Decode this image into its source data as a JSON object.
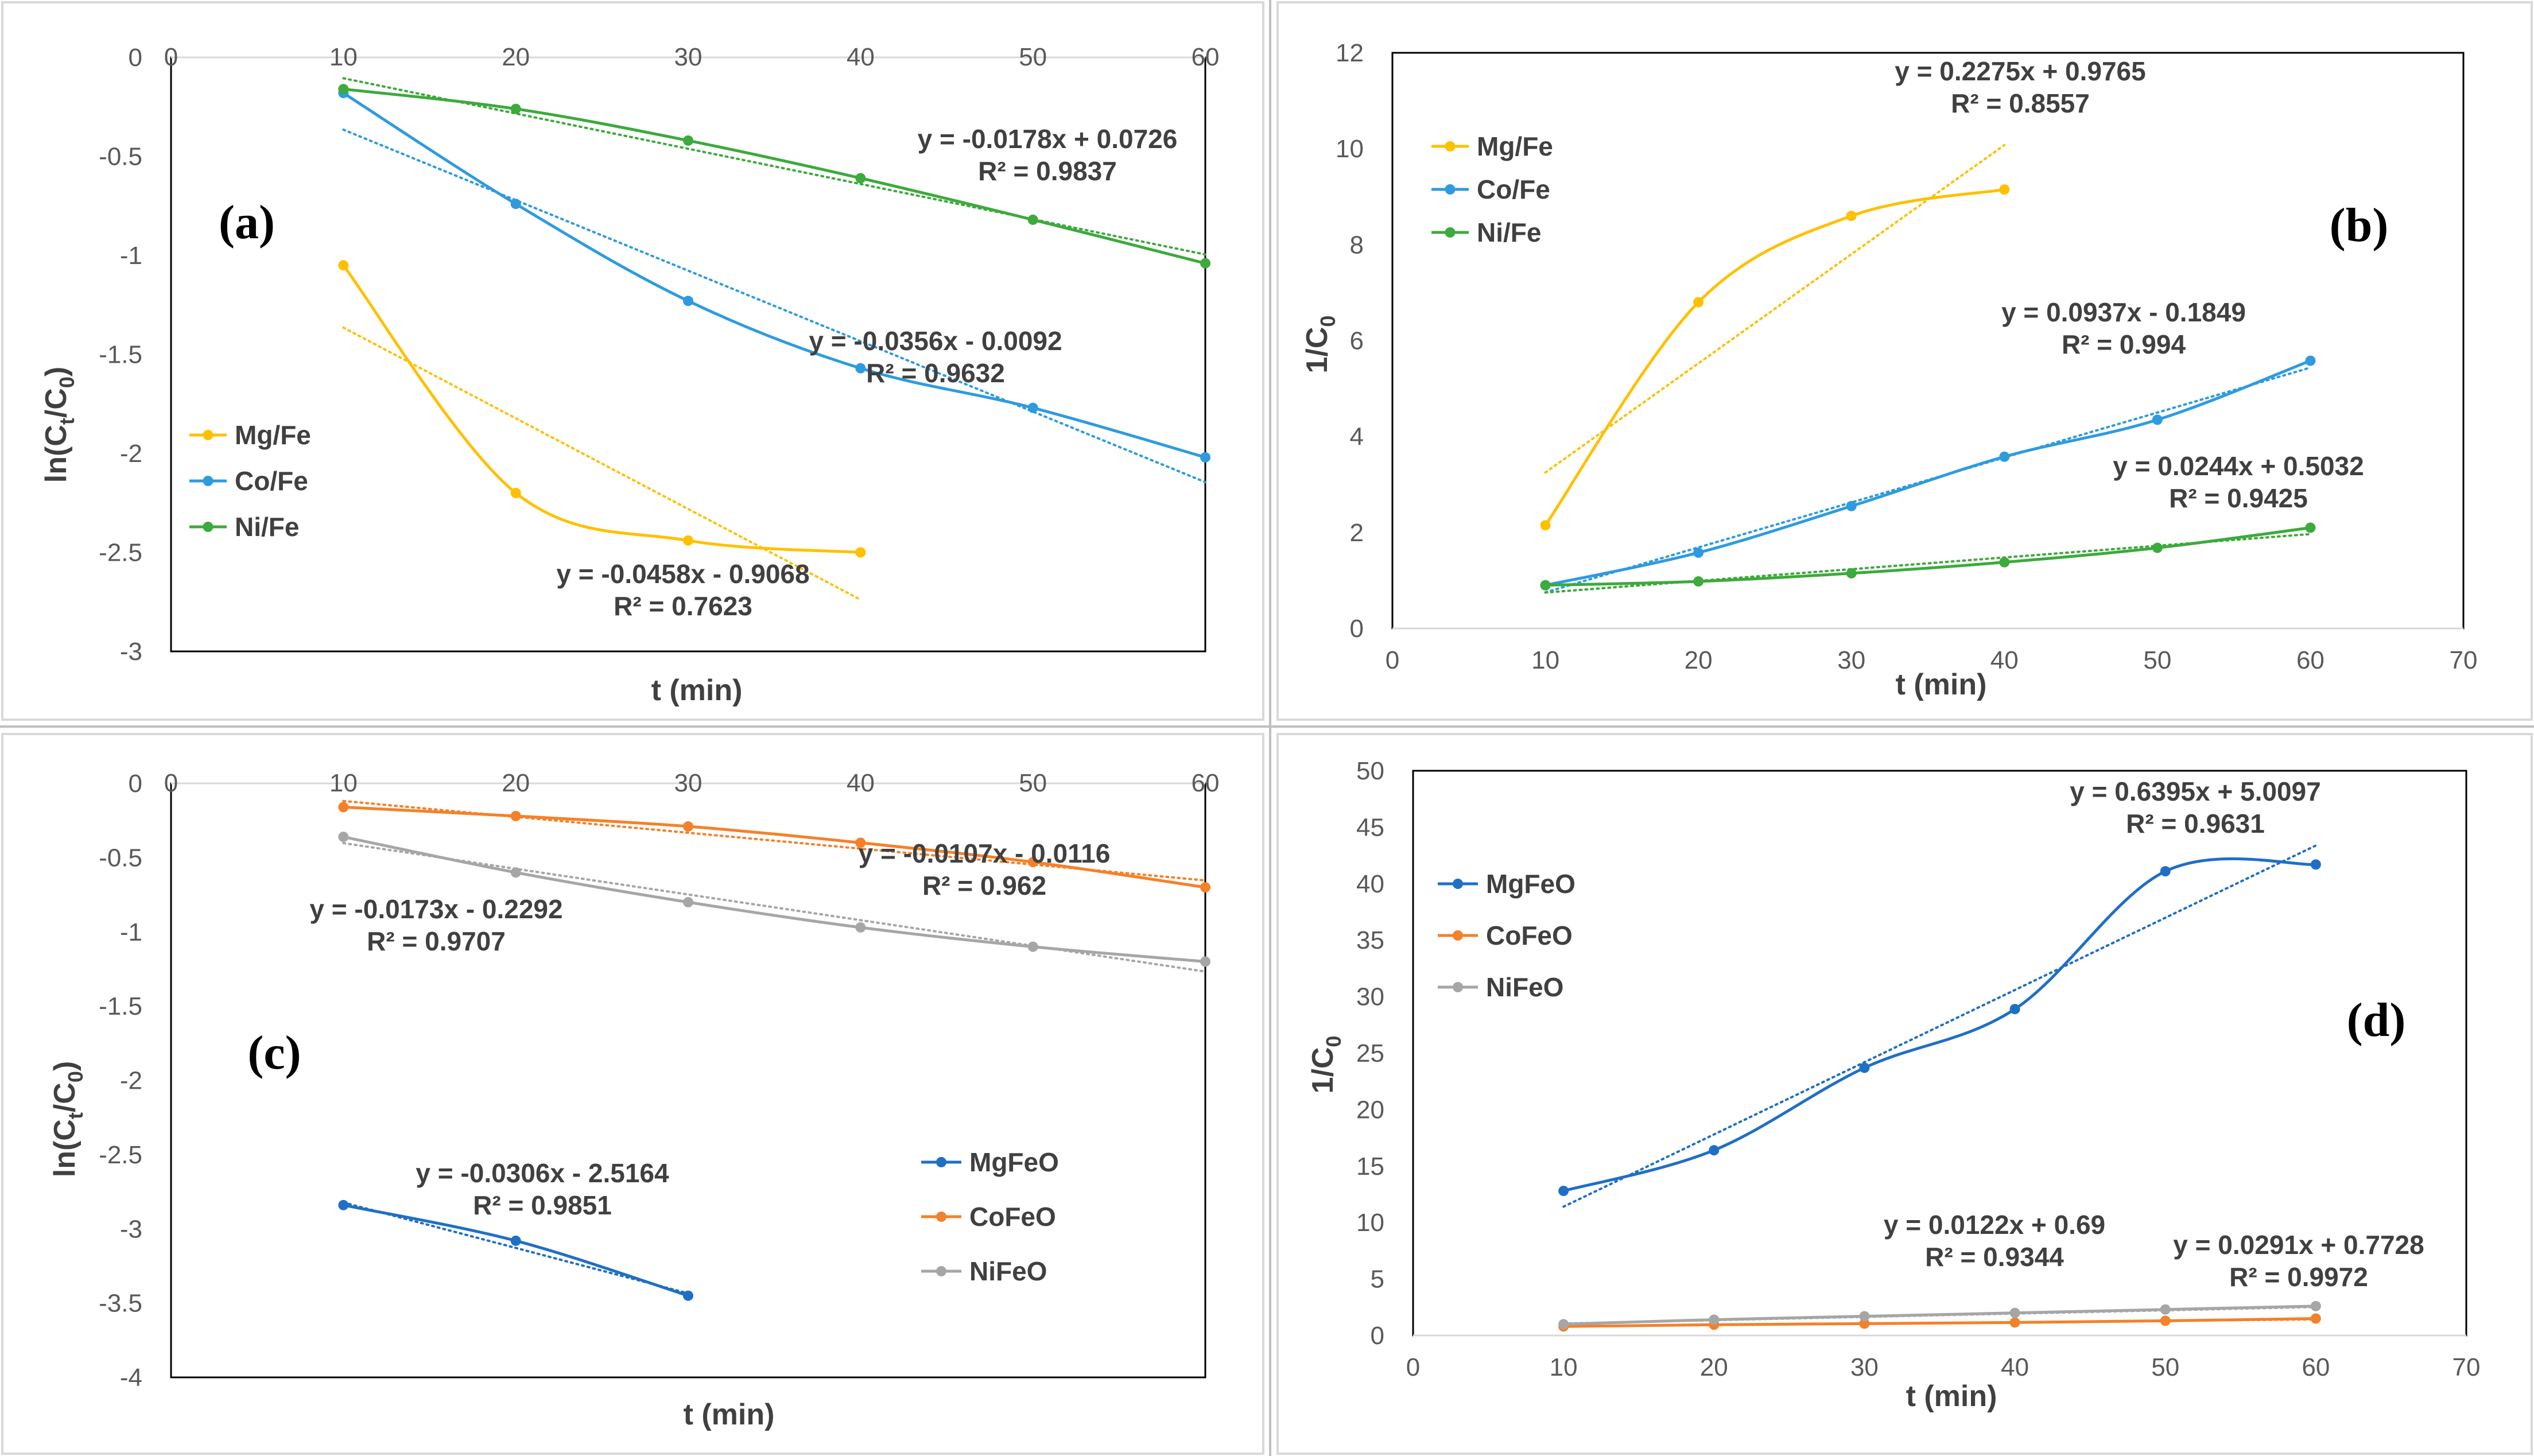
{
  "chart_data": [
    {
      "type": "line",
      "panel": "(a)",
      "xlabel": "t (min)",
      "ylabel_main": "ln(C",
      "ylabel_sub1": "t",
      "ylabel_mid": "/C",
      "ylabel_sub2": "0",
      "ylabel_end": ")",
      "xlim": [
        0,
        60
      ],
      "ylim": [
        -3,
        0
      ],
      "x_axis_position": "top",
      "xticks": [
        0,
        10,
        20,
        30,
        40,
        50,
        60
      ],
      "yticks": [
        0,
        -0.5,
        -1,
        -1.5,
        -2,
        -2.5,
        -3
      ],
      "legend_position": "left",
      "series": [
        {
          "name": "Mg/Fe",
          "color": "#FFC000",
          "x": [
            10,
            20,
            30,
            40
          ],
          "y": [
            -1.05,
            -2.2,
            -2.44,
            -2.5
          ],
          "trend": {
            "slope": -0.0458,
            "intercept": -0.9068,
            "x_range": [
              10,
              40
            ]
          },
          "equation": "y = -0.0458x - 0.9068",
          "r2": "R² = 0.7623"
        },
        {
          "name": "Co/Fe",
          "color": "#2E9BE0",
          "x": [
            10,
            20,
            30,
            40,
            50,
            60
          ],
          "y": [
            -0.18,
            -0.74,
            -1.23,
            -1.57,
            -1.77,
            -2.02
          ],
          "trend": {
            "slope": -0.0356,
            "intercept": -0.0092,
            "x_range": [
              10,
              60
            ]
          },
          "equation": "y = -0.0356x - 0.0092",
          "r2": "R² = 0.9632"
        },
        {
          "name": "Ni/Fe",
          "color": "#3CAA3C",
          "x": [
            10,
            20,
            30,
            40,
            50,
            60
          ],
          "y": [
            -0.16,
            -0.26,
            -0.42,
            -0.61,
            -0.82,
            -1.04
          ],
          "trend": {
            "slope": -0.0178,
            "intercept": 0.0726,
            "x_range": [
              10,
              60
            ]
          },
          "equation": "y = -0.0178x + 0.0726",
          "r2": "R² = 0.9837"
        }
      ]
    },
    {
      "type": "line",
      "panel": "(b)",
      "xlabel": "t (min)",
      "ylabel_main": "1/C",
      "ylabel_sub2": "0",
      "xlim": [
        0,
        70
      ],
      "ylim": [
        0,
        12
      ],
      "x_axis_position": "bottom",
      "xticks": [
        0,
        10,
        20,
        30,
        40,
        50,
        60,
        70
      ],
      "yticks": [
        0,
        2,
        4,
        6,
        8,
        10,
        12
      ],
      "legend_position": "top-left",
      "series": [
        {
          "name": "Mg/Fe",
          "color": "#FFC000",
          "x": [
            10,
            20,
            30,
            40
          ],
          "y": [
            2.15,
            6.8,
            8.6,
            9.15
          ],
          "trend": {
            "slope": 0.2275,
            "intercept": 0.9765,
            "x_range": [
              10,
              40
            ]
          },
          "equation": "y = 0.2275x + 0.9765",
          "r2": "R² = 0.8557"
        },
        {
          "name": "Co/Fe",
          "color": "#2E9BE0",
          "x": [
            10,
            20,
            30,
            40,
            50,
            60
          ],
          "y": [
            0.9,
            1.58,
            2.55,
            3.58,
            4.35,
            5.58
          ],
          "trend": {
            "slope": 0.0937,
            "intercept": -0.1849,
            "x_range": [
              10,
              60
            ]
          },
          "equation": "y = 0.0937x - 0.1849",
          "r2": "R² = 0.994"
        },
        {
          "name": "Ni/Fe",
          "color": "#3CAA3C",
          "x": [
            10,
            20,
            30,
            40,
            50,
            60
          ],
          "y": [
            0.9,
            0.98,
            1.15,
            1.38,
            1.68,
            2.1
          ],
          "trend": {
            "slope": 0.0244,
            "intercept": 0.5032,
            "x_range": [
              10,
              60
            ]
          },
          "equation": "y = 0.0244x + 0.5032",
          "r2": "R² = 0.9425"
        }
      ]
    },
    {
      "type": "line",
      "panel": "(c)",
      "xlabel": "t (min)",
      "ylabel_main": "ln(C",
      "ylabel_sub1": "t",
      "ylabel_mid": "/C",
      "ylabel_sub2": "0",
      "ylabel_end": ")",
      "xlim": [
        0,
        60
      ],
      "ylim": [
        -4,
        0
      ],
      "x_axis_position": "top",
      "xticks": [
        0,
        10,
        20,
        30,
        40,
        50,
        60
      ],
      "yticks": [
        0,
        -0.5,
        -1,
        -1.5,
        -2,
        -2.5,
        -3,
        -3.5,
        -4
      ],
      "legend_position": "right",
      "series": [
        {
          "name": "MgFeO",
          "color": "#1F6FC5",
          "x": [
            10,
            20,
            30
          ],
          "y": [
            -2.84,
            -3.08,
            -3.45
          ],
          "trend": {
            "slope": -0.0306,
            "intercept": -2.5164,
            "x_range": [
              10,
              30
            ]
          },
          "equation": "y = -0.0306x - 2.5164",
          "r2": "R² = 0.9851"
        },
        {
          "name": "CoFeO",
          "color": "#F4812A",
          "x": [
            10,
            20,
            30,
            40,
            50,
            60
          ],
          "y": [
            -0.16,
            -0.22,
            -0.29,
            -0.4,
            -0.53,
            -0.7
          ],
          "trend": {
            "slope": -0.0107,
            "intercept": -0.0116,
            "x_range": [
              10,
              60
            ]
          },
          "equation": "y = -0.0107x - 0.0116",
          "r2": "R² = 0.962"
        },
        {
          "name": "NiFeO",
          "color": "#A6A6A6",
          "x": [
            10,
            20,
            30,
            40,
            50,
            60
          ],
          "y": [
            -0.36,
            -0.6,
            -0.8,
            -0.97,
            -1.1,
            -1.2
          ],
          "trend": {
            "slope": -0.0173,
            "intercept": -0.2292,
            "x_range": [
              10,
              60
            ]
          },
          "equation": "y = -0.0173x - 0.2292",
          "r2": "R² = 0.9707"
        }
      ]
    },
    {
      "type": "line",
      "panel": "(d)",
      "xlabel": "t (min)",
      "ylabel_main": "1/C",
      "ylabel_sub2": "0",
      "xlim": [
        0,
        70
      ],
      "ylim": [
        0,
        50
      ],
      "x_axis_position": "bottom",
      "xticks": [
        0,
        10,
        20,
        30,
        40,
        50,
        60,
        70
      ],
      "yticks": [
        0,
        5,
        10,
        15,
        20,
        25,
        30,
        35,
        40,
        45,
        50
      ],
      "legend_position": "top-left",
      "series": [
        {
          "name": "MgFeO",
          "color": "#1F6FC5",
          "x": [
            10,
            20,
            30,
            40,
            50,
            60
          ],
          "y": [
            12.8,
            16.4,
            23.7,
            28.9,
            41.1,
            41.7
          ],
          "trend": {
            "slope": 0.6395,
            "intercept": 5.0097,
            "x_range": [
              10,
              60
            ]
          },
          "equation": "y = 0.6395x + 5.0097",
          "r2": "R² = 0.9631"
        },
        {
          "name": "CoFeO",
          "color": "#F4812A",
          "x": [
            10,
            20,
            30,
            40,
            50,
            60
          ],
          "y": [
            0.8,
            0.95,
            1.05,
            1.15,
            1.3,
            1.5
          ],
          "trend": {
            "slope": 0.0122,
            "intercept": 0.69,
            "x_range": [
              10,
              60
            ]
          },
          "equation": "y = 0.0122x + 0.69",
          "r2": "R² = 0.9344"
        },
        {
          "name": "NiFeO",
          "color": "#A6A6A6",
          "x": [
            10,
            20,
            30,
            40,
            50,
            60
          ],
          "y": [
            1.0,
            1.4,
            1.7,
            2.0,
            2.3,
            2.6
          ],
          "trend": {
            "slope": 0.0291,
            "intercept": 0.7728,
            "x_range": [
              10,
              60
            ]
          },
          "equation": "y = 0.0291x + 0.7728",
          "r2": "R² = 0.9972"
        }
      ]
    }
  ]
}
